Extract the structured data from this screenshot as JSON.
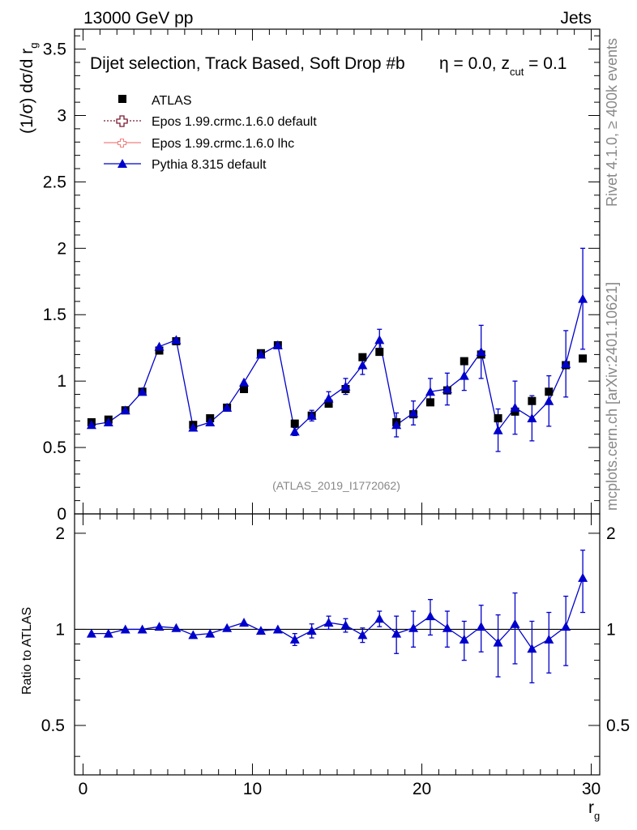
{
  "header": {
    "left": "13000 GeV pp",
    "right": "Jets"
  },
  "chart_data": {
    "type": "scatter",
    "title": "Dijet selection, Track Based, Soft Drop #b",
    "title_tail": "η = 0.0, z",
    "title_sub": "cut",
    "title_end": " = 0.1",
    "ylabel": "(1/σ) dσ/d r",
    "ylabel_sub": "g",
    "xlabel": "r",
    "xlabel_sub": "g",
    "ratio_ylabel": "Ratio to ATLAS",
    "watermark": "(ATLAS_2019_I1772062)",
    "side_top": "Rivet 4.1.0, ≥ 400k events",
    "side_bottom": "mcplots.cern.ch [arXiv:2401.10621]",
    "xlim": [
      -0.5,
      30.5
    ],
    "ylim": [
      0,
      3.65
    ],
    "ratio_ylim": [
      0.35,
      2.3
    ],
    "x_ticks": [
      "0",
      "10",
      "20",
      "30"
    ],
    "y_ticks": [
      "0",
      "0.5",
      "1",
      "1.5",
      "2",
      "2.5",
      "3",
      "3.5"
    ],
    "ratio_ticks": [
      "0.5",
      "1",
      "2"
    ],
    "legend": [
      {
        "name": "ATLAS",
        "style": "square",
        "color": "#000000"
      },
      {
        "name": "Epos 1.99.crmc.1.6.0 default",
        "style": "cross-dotted",
        "color": "#7a1a33"
      },
      {
        "name": "Epos 1.99.crmc.1.6.0 lhc",
        "style": "cross-line",
        "color": "#f08080"
      },
      {
        "name": "Pythia 8.315 default",
        "style": "triangle",
        "color": "#0000cc"
      }
    ],
    "x": [
      0.5,
      1.5,
      2.5,
      3.5,
      4.5,
      5.5,
      6.5,
      7.5,
      8.5,
      9.5,
      10.5,
      11.5,
      12.5,
      13.5,
      14.5,
      15.5,
      16.5,
      17.5,
      18.5,
      19.5,
      20.5,
      21.5,
      22.5,
      23.5,
      24.5,
      25.5,
      26.5,
      27.5,
      28.5,
      29.5
    ],
    "series": [
      {
        "name": "ATLAS",
        "values": [
          0.69,
          0.71,
          0.78,
          0.92,
          1.23,
          1.3,
          0.67,
          0.72,
          0.8,
          0.94,
          1.21,
          1.27,
          0.68,
          0.74,
          0.83,
          0.94,
          1.18,
          1.22,
          0.69,
          0.75,
          0.84,
          0.93,
          1.15,
          1.2,
          0.72,
          0.77,
          0.85,
          0.92,
          1.12,
          1.17
        ]
      },
      {
        "name": "Pythia 8.315 default",
        "values": [
          0.67,
          0.69,
          0.78,
          0.92,
          1.26,
          1.31,
          0.65,
          0.69,
          0.8,
          0.99,
          1.2,
          1.27,
          0.62,
          0.74,
          0.87,
          0.96,
          1.12,
          1.31,
          0.67,
          0.76,
          0.92,
          0.94,
          1.04,
          1.22,
          0.63,
          0.8,
          0.72,
          0.85,
          1.13,
          1.62
        ],
        "errors": [
          0.01,
          0.01,
          0.01,
          0.01,
          0.01,
          0.01,
          0.01,
          0.01,
          0.01,
          0.01,
          0.01,
          0.01,
          0.03,
          0.04,
          0.05,
          0.06,
          0.07,
          0.08,
          0.09,
          0.09,
          0.1,
          0.12,
          0.11,
          0.2,
          0.16,
          0.2,
          0.17,
          0.19,
          0.25,
          0.38
        ],
        "ratio": [
          0.97,
          0.97,
          1.0,
          1.0,
          1.02,
          1.01,
          0.96,
          0.97,
          1.01,
          1.05,
          0.99,
          1.0,
          0.93,
          0.99,
          1.05,
          1.03,
          0.96,
          1.08,
          0.97,
          1.01,
          1.1,
          1.01,
          0.93,
          1.02,
          0.91,
          1.04,
          0.87,
          0.93,
          1.02,
          1.45
        ],
        "ratio_errors": [
          0.01,
          0.01,
          0.01,
          0.01,
          0.01,
          0.01,
          0.01,
          0.01,
          0.01,
          0.01,
          0.01,
          0.01,
          0.04,
          0.05,
          0.05,
          0.05,
          0.05,
          0.06,
          0.13,
          0.13,
          0.14,
          0.13,
          0.13,
          0.17,
          0.2,
          0.26,
          0.19,
          0.2,
          0.25,
          0.32
        ]
      }
    ]
  }
}
